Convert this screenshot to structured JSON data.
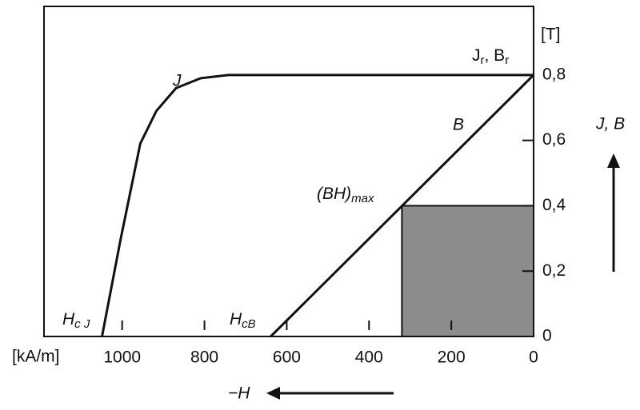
{
  "chart_data": {
    "type": "line",
    "series": [
      {
        "name": "J",
        "color": "#111111",
        "x": [
          1049,
          1004,
          956,
          917,
          869,
          810,
          742,
          0
        ],
        "values": [
          0,
          0.296,
          0.59,
          0.69,
          0.76,
          0.79,
          0.8,
          0.8
        ]
      },
      {
        "name": "B",
        "color": "#111111",
        "x": [
          639,
          0
        ],
        "values": [
          0,
          0.8
        ]
      }
    ],
    "bh_max": {
      "H": 320,
      "B": 0.4,
      "color": "#8c8c8c",
      "label": {
        "text": "(BH)",
        "sub": "max"
      }
    },
    "coercivity_labels": [
      {
        "text": "H",
        "sub": "c J"
      },
      {
        "text": "H",
        "sub": "cB"
      }
    ],
    "remanence_labels": [
      {
        "text": "J",
        "sub": "r"
      },
      {
        "text": ", B",
        "sub": "r"
      }
    ],
    "xlim": [
      1190,
      0
    ],
    "xticks": [
      1000,
      800,
      600,
      400,
      200,
      0
    ],
    "ylim": [
      0,
      1.01
    ],
    "yticks": [
      0,
      {
        "value": 0.2,
        "label": "0,2"
      },
      {
        "value": 0.4,
        "label": "0,4"
      },
      {
        "value": 0.6,
        "label": "0,6"
      },
      {
        "value": 0.8,
        "label": "0,8"
      }
    ],
    "x_unit": "[kA/m]",
    "y_unit": "[T]",
    "x_label": "−H",
    "y_label": "J, B"
  }
}
